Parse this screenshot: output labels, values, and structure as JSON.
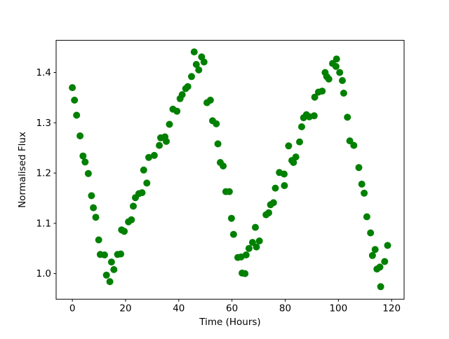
{
  "figure": {
    "background": "#ffffff",
    "border_color": "#000000"
  },
  "chart_data": {
    "type": "scatter",
    "title": "",
    "xlabel": "Time (Hours)",
    "ylabel": "Normalised Flux",
    "marker_color": "#008000",
    "marker_radius_px": 5,
    "xlim": [
      -6.1,
      124.7
    ],
    "ylim": [
      0.949,
      1.464
    ],
    "xticks": [
      0,
      20,
      40,
      60,
      80,
      100,
      120
    ],
    "yticks": [
      "1.0",
      "1.1",
      "1.2",
      "1.3",
      "1.4"
    ],
    "grid": false,
    "legend": null,
    "points": [
      [
        0.0,
        1.37
      ],
      [
        0.8,
        1.345
      ],
      [
        1.6,
        1.315
      ],
      [
        2.9,
        1.274
      ],
      [
        4.0,
        1.234
      ],
      [
        4.8,
        1.222
      ],
      [
        6.0,
        1.199
      ],
      [
        7.2,
        1.155
      ],
      [
        7.9,
        1.131
      ],
      [
        8.8,
        1.112
      ],
      [
        9.9,
        1.067
      ],
      [
        10.5,
        1.038
      ],
      [
        12.1,
        1.037
      ],
      [
        12.8,
        0.997
      ],
      [
        14.1,
        0.984
      ],
      [
        14.7,
        1.023
      ],
      [
        15.6,
        1.008
      ],
      [
        17.0,
        1.038
      ],
      [
        18.2,
        1.039
      ],
      [
        18.5,
        1.087
      ],
      [
        19.5,
        1.084
      ],
      [
        21.1,
        1.103
      ],
      [
        22.2,
        1.107
      ],
      [
        22.9,
        1.134
      ],
      [
        23.7,
        1.151
      ],
      [
        25.0,
        1.159
      ],
      [
        26.2,
        1.161
      ],
      [
        26.8,
        1.206
      ],
      [
        28.0,
        1.18
      ],
      [
        28.7,
        1.231
      ],
      [
        30.8,
        1.235
      ],
      [
        32.7,
        1.255
      ],
      [
        33.2,
        1.27
      ],
      [
        34.8,
        1.272
      ],
      [
        35.3,
        1.263
      ],
      [
        36.5,
        1.297
      ],
      [
        37.8,
        1.327
      ],
      [
        39.3,
        1.323
      ],
      [
        40.5,
        1.348
      ],
      [
        41.3,
        1.356
      ],
      [
        42.6,
        1.368
      ],
      [
        43.4,
        1.372
      ],
      [
        44.8,
        1.392
      ],
      [
        45.8,
        1.441
      ],
      [
        46.6,
        1.416
      ],
      [
        47.5,
        1.405
      ],
      [
        48.6,
        1.431
      ],
      [
        49.5,
        1.421
      ],
      [
        50.6,
        1.34
      ],
      [
        51.9,
        1.345
      ],
      [
        52.7,
        1.304
      ],
      [
        54.1,
        1.298
      ],
      [
        54.7,
        1.258
      ],
      [
        55.6,
        1.221
      ],
      [
        56.7,
        1.214
      ],
      [
        57.7,
        1.163
      ],
      [
        59.0,
        1.163
      ],
      [
        59.8,
        1.11
      ],
      [
        60.6,
        1.078
      ],
      [
        62.2,
        1.032
      ],
      [
        63.4,
        1.033
      ],
      [
        63.8,
        1.001
      ],
      [
        64.9,
        1.0
      ],
      [
        65.3,
        1.037
      ],
      [
        66.4,
        1.05
      ],
      [
        67.7,
        1.062
      ],
      [
        68.8,
        1.092
      ],
      [
        69.2,
        1.053
      ],
      [
        70.3,
        1.065
      ],
      [
        72.8,
        1.117
      ],
      [
        73.8,
        1.121
      ],
      [
        74.5,
        1.137
      ],
      [
        75.6,
        1.141
      ],
      [
        76.3,
        1.17
      ],
      [
        77.8,
        1.201
      ],
      [
        79.6,
        1.198
      ],
      [
        79.7,
        1.175
      ],
      [
        81.3,
        1.254
      ],
      [
        82.5,
        1.225
      ],
      [
        83.1,
        1.221
      ],
      [
        84.0,
        1.232
      ],
      [
        85.4,
        1.262
      ],
      [
        86.2,
        1.292
      ],
      [
        86.9,
        1.31
      ],
      [
        88.0,
        1.316
      ],
      [
        89.1,
        1.312
      ],
      [
        90.9,
        1.314
      ],
      [
        91.1,
        1.351
      ],
      [
        92.5,
        1.361
      ],
      [
        93.9,
        1.363
      ],
      [
        95.0,
        1.4
      ],
      [
        95.6,
        1.392
      ],
      [
        96.4,
        1.387
      ],
      [
        97.8,
        1.418
      ],
      [
        99.1,
        1.412
      ],
      [
        99.3,
        1.427
      ],
      [
        100.5,
        1.4
      ],
      [
        101.5,
        1.384
      ],
      [
        102.0,
        1.359
      ],
      [
        103.4,
        1.311
      ],
      [
        104.3,
        1.264
      ],
      [
        105.8,
        1.255
      ],
      [
        107.7,
        1.211
      ],
      [
        108.8,
        1.178
      ],
      [
        109.7,
        1.16
      ],
      [
        110.7,
        1.113
      ],
      [
        112.1,
        1.081
      ],
      [
        112.8,
        1.036
      ],
      [
        113.8,
        1.048
      ],
      [
        114.5,
        1.009
      ],
      [
        115.6,
        1.013
      ],
      [
        115.9,
        0.974
      ],
      [
        117.4,
        1.024
      ],
      [
        118.5,
        1.056
      ]
    ]
  }
}
